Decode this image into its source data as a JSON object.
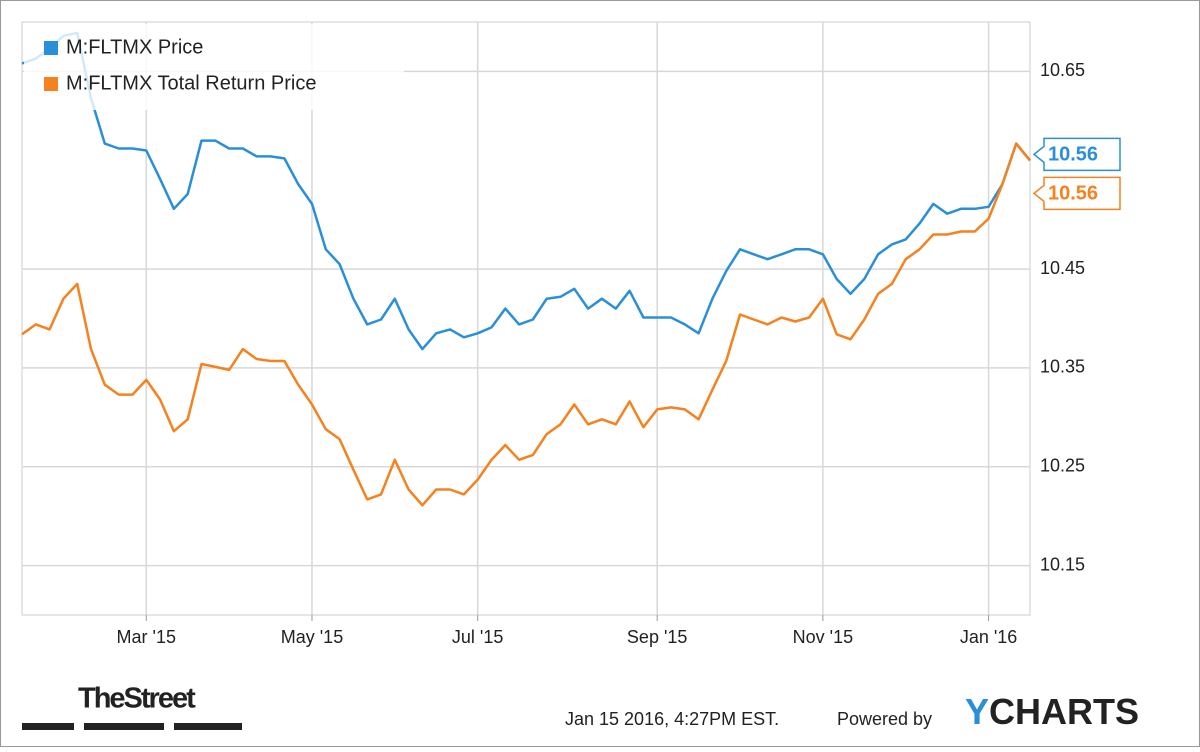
{
  "chart_data": {
    "type": "line",
    "categories": [
      null,
      null,
      null,
      null,
      null,
      null,
      null,
      null,
      null,
      "Mar '15",
      null,
      null,
      null,
      null,
      null,
      null,
      null,
      null,
      null,
      null,
      null,
      "May '15",
      null,
      null,
      null,
      null,
      null,
      null,
      null,
      null,
      null,
      null,
      null,
      "Jul '15",
      null,
      null,
      null,
      null,
      null,
      null,
      null,
      null,
      null,
      null,
      null,
      null,
      "Sep '15",
      null,
      null,
      null,
      null,
      null,
      null,
      null,
      null,
      null,
      null,
      null,
      "Nov '15",
      null,
      null,
      null,
      null,
      null,
      null,
      null,
      null,
      null,
      null,
      null,
      "Jan '16",
      null,
      null,
      null
    ],
    "series": [
      {
        "name": "M:FLTMX Price",
        "color": "#2a8fd9",
        "values": [
          10.658,
          10.663,
          10.673,
          10.686,
          10.689,
          10.623,
          10.577,
          10.572,
          10.572,
          10.57,
          10.541,
          10.511,
          10.526,
          10.58,
          10.58,
          10.572,
          10.572,
          10.564,
          10.564,
          10.562,
          10.536,
          10.516,
          10.47,
          10.455,
          10.42,
          10.394,
          10.399,
          10.42,
          10.389,
          10.369,
          10.385,
          10.389,
          10.381,
          10.385,
          10.391,
          10.41,
          10.394,
          10.399,
          10.42,
          10.422,
          10.43,
          10.41,
          10.42,
          10.41,
          10.428,
          10.401,
          10.401,
          10.401,
          10.394,
          10.385,
          10.42,
          10.448,
          10.47,
          10.465,
          10.46,
          10.465,
          10.47,
          10.47,
          10.465,
          10.44,
          10.425,
          10.44,
          10.465,
          10.475,
          10.48,
          10.496,
          10.516,
          10.506,
          10.511,
          10.511,
          10.513,
          10.536,
          10.577,
          10.56
        ]
      },
      {
        "name": "M:FLTMX Total Return Price",
        "color": "#f5821f",
        "values": [
          10.384,
          10.394,
          10.389,
          10.42,
          10.435,
          10.369,
          10.333,
          10.323,
          10.323,
          10.338,
          10.318,
          10.286,
          10.298,
          10.354,
          10.351,
          10.348,
          10.369,
          10.359,
          10.357,
          10.357,
          10.333,
          10.313,
          10.288,
          10.278,
          10.247,
          10.217,
          10.222,
          10.257,
          10.227,
          10.211,
          10.227,
          10.227,
          10.222,
          10.237,
          10.257,
          10.272,
          10.257,
          10.262,
          10.283,
          10.293,
          10.313,
          10.293,
          10.298,
          10.293,
          10.316,
          10.29,
          10.308,
          10.31,
          10.308,
          10.298,
          10.328,
          10.357,
          10.404,
          10.399,
          10.394,
          10.401,
          10.397,
          10.401,
          10.42,
          10.384,
          10.379,
          10.399,
          10.425,
          10.435,
          10.46,
          10.47,
          10.485,
          10.485,
          10.488,
          10.488,
          10.501,
          10.536,
          10.577,
          10.56
        ]
      }
    ],
    "ylim": [
      10.1,
      10.7
    ],
    "yticks": [
      10.65,
      10.45,
      10.35,
      10.25,
      10.15
    ],
    "grid": true,
    "legend": "top-left",
    "footer": {
      "brand": "TheStreet",
      "timestamp": "Jan 15 2016, 4:27PM EST.",
      "powered": "Powered by",
      "logo_y": "Y",
      "logo_rest": "CHARTS"
    }
  }
}
